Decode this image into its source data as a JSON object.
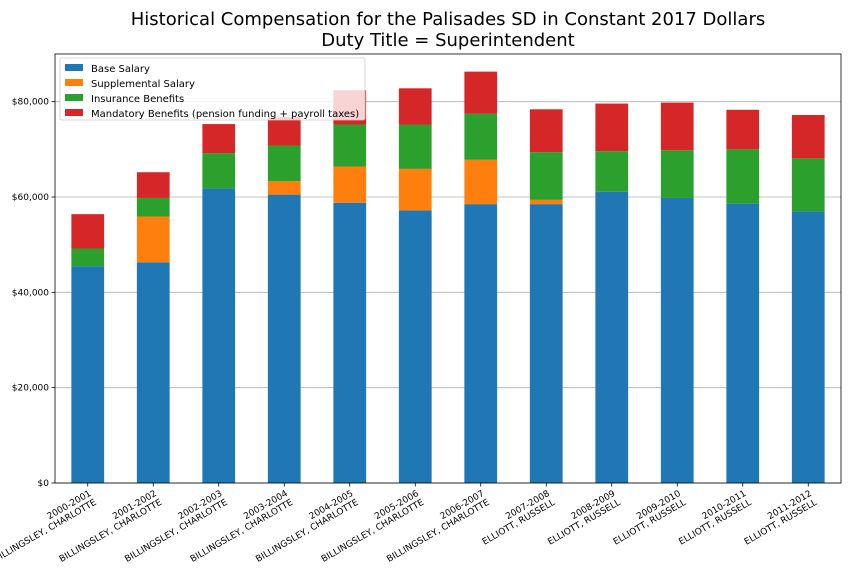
{
  "chart_data": {
    "type": "bar",
    "stacked": true,
    "title": "Historical Compensation for the Palisades SD in Constant 2017 Dollars",
    "subtitle": "Duty Title = Superintendent",
    "xlabel": "",
    "ylabel": "",
    "ylim": [
      0,
      90000
    ],
    "yticks": [
      0,
      20000,
      40000,
      60000,
      80000
    ],
    "ytick_labels": [
      "$0",
      "$20,000",
      "$40,000",
      "$60,000",
      "$80,000"
    ],
    "grid": "horizontal",
    "legend_position": "top-left",
    "categories": [
      [
        "2000-2001",
        "BILLINGSLEY, CHARLOTTE"
      ],
      [
        "2001-2002",
        "BILLINGSLEY, CHARLOTTE"
      ],
      [
        "2002-2003",
        "BILLINGSLEY, CHARLOTTE"
      ],
      [
        "2003-2004",
        "BILLINGSLEY, CHARLOTTE"
      ],
      [
        "2004-2005",
        "BILLINGSLEY, CHARLOTTE"
      ],
      [
        "2005-2006",
        "BILLINGSLEY, CHARLOTTE"
      ],
      [
        "2006-2007",
        "BILLINGSLEY, CHARLOTTE"
      ],
      [
        "2007-2008",
        "ELLIOTT, RUSSELL"
      ],
      [
        "2008-2009",
        "ELLIOTT, RUSSELL"
      ],
      [
        "2009-2010",
        "ELLIOTT, RUSSELL"
      ],
      [
        "2010-2011",
        "ELLIOTT, RUSSELL"
      ],
      [
        "2011-2012",
        "ELLIOTT, RUSSELL"
      ]
    ],
    "series": [
      {
        "name": "Base Salary",
        "color": "#1f77b4",
        "values": [
          45500,
          46300,
          61800,
          60500,
          58800,
          57200,
          58500,
          58500,
          61100,
          59800,
          58600,
          57000
        ]
      },
      {
        "name": "Supplemental Salary",
        "color": "#ff7f0e",
        "values": [
          0,
          9600,
          0,
          2800,
          7600,
          8700,
          9300,
          900,
          0,
          0,
          0,
          0
        ]
      },
      {
        "name": "Insurance Benefits",
        "color": "#2ca02c",
        "values": [
          3700,
          3900,
          7400,
          7500,
          8800,
          9300,
          9700,
          10000,
          8500,
          10000,
          11400,
          11100
        ]
      },
      {
        "name": "Mandatory Benefits (pension funding + payroll taxes)",
        "color": "#d62728",
        "values": [
          7200,
          5400,
          6100,
          6000,
          7200,
          7600,
          8800,
          9000,
          10000,
          10000,
          8300,
          9100
        ]
      }
    ]
  }
}
